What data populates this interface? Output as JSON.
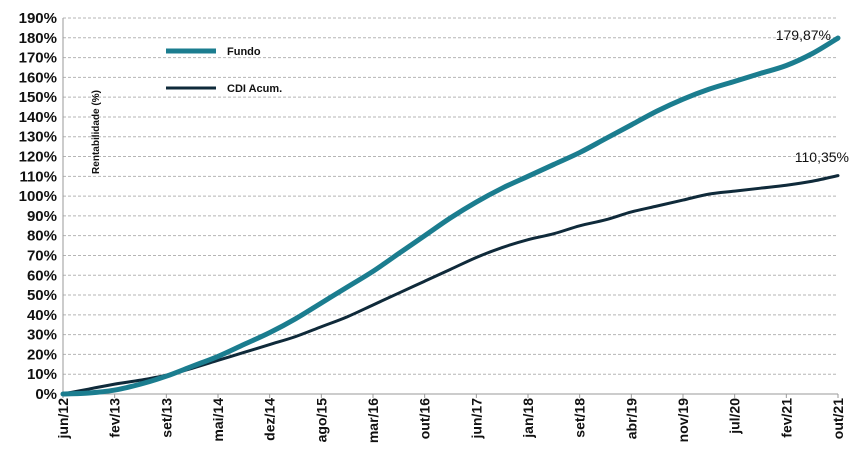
{
  "chart_data": {
    "type": "line",
    "title": "",
    "xlabel": "",
    "ylabel": "Rentabilidade (%)",
    "ylim": [
      0,
      190
    ],
    "y_ticks": [
      "0%",
      "10%",
      "20%",
      "30%",
      "40%",
      "50%",
      "60%",
      "70%",
      "80%",
      "90%",
      "100%",
      "110%",
      "120%",
      "130%",
      "140%",
      "150%",
      "160%",
      "170%",
      "180%",
      "190%"
    ],
    "x_ticks": [
      "jun/12",
      "fev/13",
      "set/13",
      "mai/14",
      "dez/14",
      "ago/15",
      "mar/16",
      "out/16",
      "jun/17",
      "jan/18",
      "set/18",
      "abr/19",
      "nov/19",
      "jul/20",
      "fev/21",
      "out/21"
    ],
    "grid": true,
    "legend_position": "top-left",
    "x": [
      "jun/12",
      "out/12",
      "fev/13",
      "jun/13",
      "set/13",
      "jan/14",
      "mai/14",
      "ago/14",
      "dez/14",
      "abr/15",
      "ago/15",
      "nov/15",
      "mar/16",
      "jul/16",
      "out/16",
      "fev/17",
      "jun/17",
      "set/17",
      "jan/18",
      "mai/18",
      "set/18",
      "dez/18",
      "abr/19",
      "ago/19",
      "nov/19",
      "mar/20",
      "jul/20",
      "out/20",
      "fev/21",
      "jun/21",
      "out/21"
    ],
    "series": [
      {
        "name": "Fundo",
        "color": "#1b7d8f",
        "values": [
          0,
          0.5,
          2,
          5,
          9,
          14,
          19,
          25,
          31,
          38,
          46,
          54,
          62,
          71,
          80,
          89,
          97,
          104,
          110,
          116,
          122,
          129,
          136,
          143,
          149,
          154,
          158,
          162,
          166,
          172,
          179.87
        ],
        "end_label": "179,87%"
      },
      {
        "name": "CDI Acum.",
        "color": "#0f2a3a",
        "values": [
          0,
          2.5,
          5,
          7,
          9.5,
          13,
          17,
          21,
          25,
          29,
          34,
          39,
          45,
          51,
          57,
          63,
          69,
          74,
          78,
          81,
          85,
          88,
          92,
          95,
          98,
          101,
          102.5,
          104,
          105.5,
          107.5,
          110.35
        ],
        "end_label": "110,35%"
      }
    ]
  }
}
